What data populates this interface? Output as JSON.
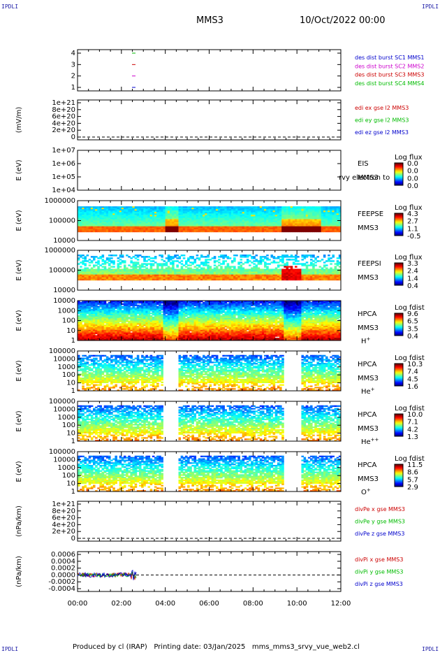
{
  "header": {
    "corner_label": "IPDLI",
    "title": "MMS3",
    "date": "10/Oct/2022 00:00"
  },
  "footer": "Produced by cl (IRAP)   Printing date: 03/Jan/2025   mms_mms3_srvy_vue_web2.cl",
  "chart_data": [
    {
      "id": "p1",
      "type": "line",
      "ticks": [
        "4",
        "3",
        "2",
        "1"
      ],
      "legend": [
        {
          "text": "des dist burst SC1 MMS1",
          "color": "#0000cc"
        },
        {
          "text": "des dist burst SC2 MMS2",
          "color": "#cc00cc"
        },
        {
          "text": "des dist burst SC3 MMS3",
          "color": "#cc0000"
        },
        {
          "text": "des dist burst SC4 MMS4",
          "color": "#00bb00"
        }
      ],
      "series": [
        {
          "color": "#00bb00",
          "y": 4
        },
        {
          "color": "#cc0000",
          "y": 3
        },
        {
          "color": "#cc00cc",
          "y": 2
        },
        {
          "color": "#0000cc",
          "y": 1
        }
      ],
      "x_mark": "02:40"
    },
    {
      "id": "p2",
      "type": "line",
      "ylabel": "(mV/m)",
      "ticks": [
        "1e+21",
        "8e+20",
        "6e+20",
        "4e+20",
        "2e+20",
        "0"
      ],
      "legend": [
        {
          "text": "edi ex gse l2 MMS3",
          "color": "#cc0000"
        },
        {
          "text": "edi ey gse l2 MMS3",
          "color": "#00bb00"
        },
        {
          "text": "edi ez gse l2 MMS3",
          "color": "#0000cc"
        }
      ]
    },
    {
      "id": "p3",
      "type": "heatmap",
      "ylabel": "E (eV)",
      "ticks": [
        "1e+07",
        "1e+06",
        "1e+05",
        "1e+04"
      ],
      "labels": [
        "EIS",
        "MMS3"
      ],
      "overlay": "rvy electron to",
      "cbar": {
        "title": "Log flux",
        "ticks": [
          "0.0",
          "0.0",
          "0.0",
          "0.0"
        ]
      },
      "empty": true
    },
    {
      "id": "p4",
      "type": "heatmap",
      "ylabel": "E (eV)",
      "ticks": [
        "1000000",
        "100000",
        "10000"
      ],
      "labels": [
        "FEEPSE",
        "MMS3"
      ],
      "cbar": {
        "title": "Log flux",
        "ticks": [
          "4.3",
          "2.7",
          "1.1",
          "-0.5"
        ]
      }
    },
    {
      "id": "p5",
      "type": "heatmap",
      "ylabel": "E (eV)",
      "ticks": [
        "1000000",
        "100000",
        "10000"
      ],
      "labels": [
        "FEEPSI",
        "MMS3"
      ],
      "cbar": {
        "title": "Log flux",
        "ticks": [
          "3.3",
          "2.4",
          "1.4",
          "0.4"
        ]
      }
    },
    {
      "id": "p6",
      "type": "heatmap",
      "ylabel": "E (eV)",
      "ticks": [
        "10000",
        "1000",
        "100",
        "10",
        "1"
      ],
      "labels": [
        "HPCA",
        "MMS3"
      ],
      "species": "H",
      "sup": "+",
      "cbar": {
        "title": "Log fdist",
        "ticks": [
          "9.6",
          "6.5",
          "3.5",
          "0.4"
        ]
      }
    },
    {
      "id": "p7",
      "type": "heatmap",
      "ylabel": "E (eV)",
      "ticks": [
        "100000",
        "10000",
        "1000",
        "100",
        "10",
        "1"
      ],
      "labels": [
        "HPCA",
        "MMS3"
      ],
      "species": "He",
      "sup": "+",
      "cbar": {
        "title": "Log fdist",
        "ticks": [
          "10.3",
          "7.4",
          "4.5",
          "1.6"
        ]
      }
    },
    {
      "id": "p8",
      "type": "heatmap",
      "ylabel": "E (eV)",
      "ticks": [
        "100000",
        "10000",
        "1000",
        "100",
        "10",
        "1"
      ],
      "labels": [
        "HPCA",
        "MMS3"
      ],
      "species": "He",
      "sup": "++",
      "cbar": {
        "title": "Log fdist",
        "ticks": [
          "10.0",
          "7.1",
          "4.2",
          "1.3"
        ]
      }
    },
    {
      "id": "p9",
      "type": "heatmap",
      "ylabel": "E (eV)",
      "ticks": [
        "100000",
        "10000",
        "1000",
        "100",
        "10",
        "1"
      ],
      "labels": [
        "HPCA",
        "MMS3"
      ],
      "species": "O",
      "sup": "+",
      "cbar": {
        "title": "Log fdist",
        "ticks": [
          "11.5",
          "8.6",
          "5.7",
          "2.9"
        ]
      }
    },
    {
      "id": "p10",
      "type": "line",
      "ylabel": "(nPa/km)",
      "ticks": [
        "1e+21",
        "8e+20",
        "6e+20",
        "4e+20",
        "2e+20",
        "0"
      ],
      "legend": [
        {
          "text": "divPe x gse MMS3",
          "color": "#cc0000"
        },
        {
          "text": "divPe y gse MMS3",
          "color": "#00bb00"
        },
        {
          "text": "divPe z gse MMS3",
          "color": "#0000cc"
        }
      ]
    },
    {
      "id": "p11",
      "type": "line",
      "ylabel": "(nPa/km)",
      "ticks": [
        "0.0006",
        "0.0004",
        "0.0002",
        "0.0000",
        "-0.0002",
        "-0.0004"
      ],
      "legend": [
        {
          "text": "divPi x gse MMS3",
          "color": "#cc0000"
        },
        {
          "text": "divPi y gse MMS3",
          "color": "#00bb00"
        },
        {
          "text": "divPi z gse MMS3",
          "color": "#0000cc"
        }
      ],
      "x_end": "02:40"
    }
  ],
  "x_axis": {
    "ticks": [
      "00:00",
      "02:00",
      "04:00",
      "06:00",
      "08:00",
      "10:00",
      "12:00"
    ]
  }
}
